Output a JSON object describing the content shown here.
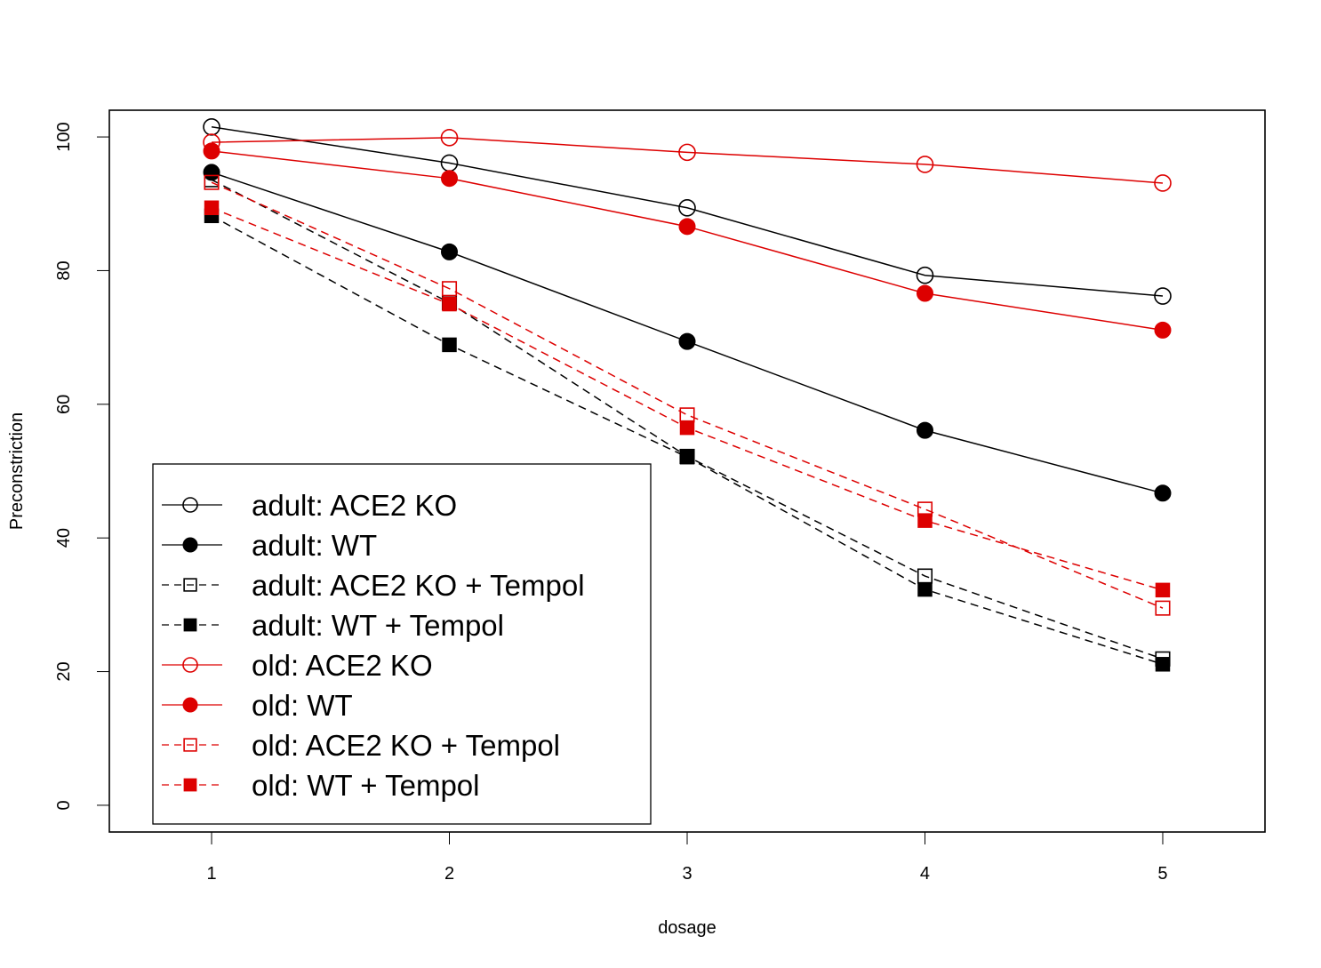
{
  "chart_data": {
    "type": "line",
    "title": "",
    "xlabel": "dosage",
    "ylabel": "Preconstriction",
    "x": [
      1,
      2,
      3,
      4,
      5
    ],
    "xticks": [
      "1",
      "2",
      "3",
      "4",
      "5"
    ],
    "yticks": [
      "0",
      "20",
      "40",
      "60",
      "80",
      "100"
    ],
    "xlim": [
      0.57,
      5.43
    ],
    "ylim": [
      -4,
      104
    ],
    "grid": false,
    "legend_position": "bottom-left",
    "series": [
      {
        "name": "adult: ACE2 KO",
        "color": "#000000",
        "line": "solid",
        "marker": "circle-open",
        "values": [
          101.5,
          96.1,
          89.4,
          79.3,
          76.2
        ]
      },
      {
        "name": "adult: WT",
        "color": "#000000",
        "line": "solid",
        "marker": "circle-filled",
        "values": [
          94.7,
          82.8,
          69.4,
          56.1,
          46.7
        ]
      },
      {
        "name": "adult: ACE2 KO + Tempol",
        "color": "#000000",
        "line": "dashed",
        "marker": "square-open",
        "values": [
          93.6,
          75.2,
          52.2,
          34.3,
          21.9
        ]
      },
      {
        "name": "adult: WT + Tempol",
        "color": "#000000",
        "line": "dashed",
        "marker": "square-filled",
        "values": [
          88.2,
          68.9,
          52.1,
          32.3,
          21.1
        ]
      },
      {
        "name": "old: ACE2 KO",
        "color": "#dd0000",
        "line": "solid",
        "marker": "circle-open",
        "values": [
          99.2,
          99.9,
          97.7,
          95.9,
          93.1
        ]
      },
      {
        "name": "old: WT",
        "color": "#dd0000",
        "line": "solid",
        "marker": "circle-filled",
        "values": [
          97.9,
          93.8,
          86.6,
          76.6,
          71.1
        ]
      },
      {
        "name": "old: ACE2 KO + Tempol",
        "color": "#dd0000",
        "line": "dashed",
        "marker": "square-open",
        "values": [
          93.2,
          77.3,
          58.4,
          44.3,
          29.5
        ]
      },
      {
        "name": "old: WT + Tempol",
        "color": "#dd0000",
        "line": "dashed",
        "marker": "square-filled",
        "values": [
          89.4,
          75.0,
          56.5,
          42.6,
          32.2
        ]
      }
    ]
  }
}
